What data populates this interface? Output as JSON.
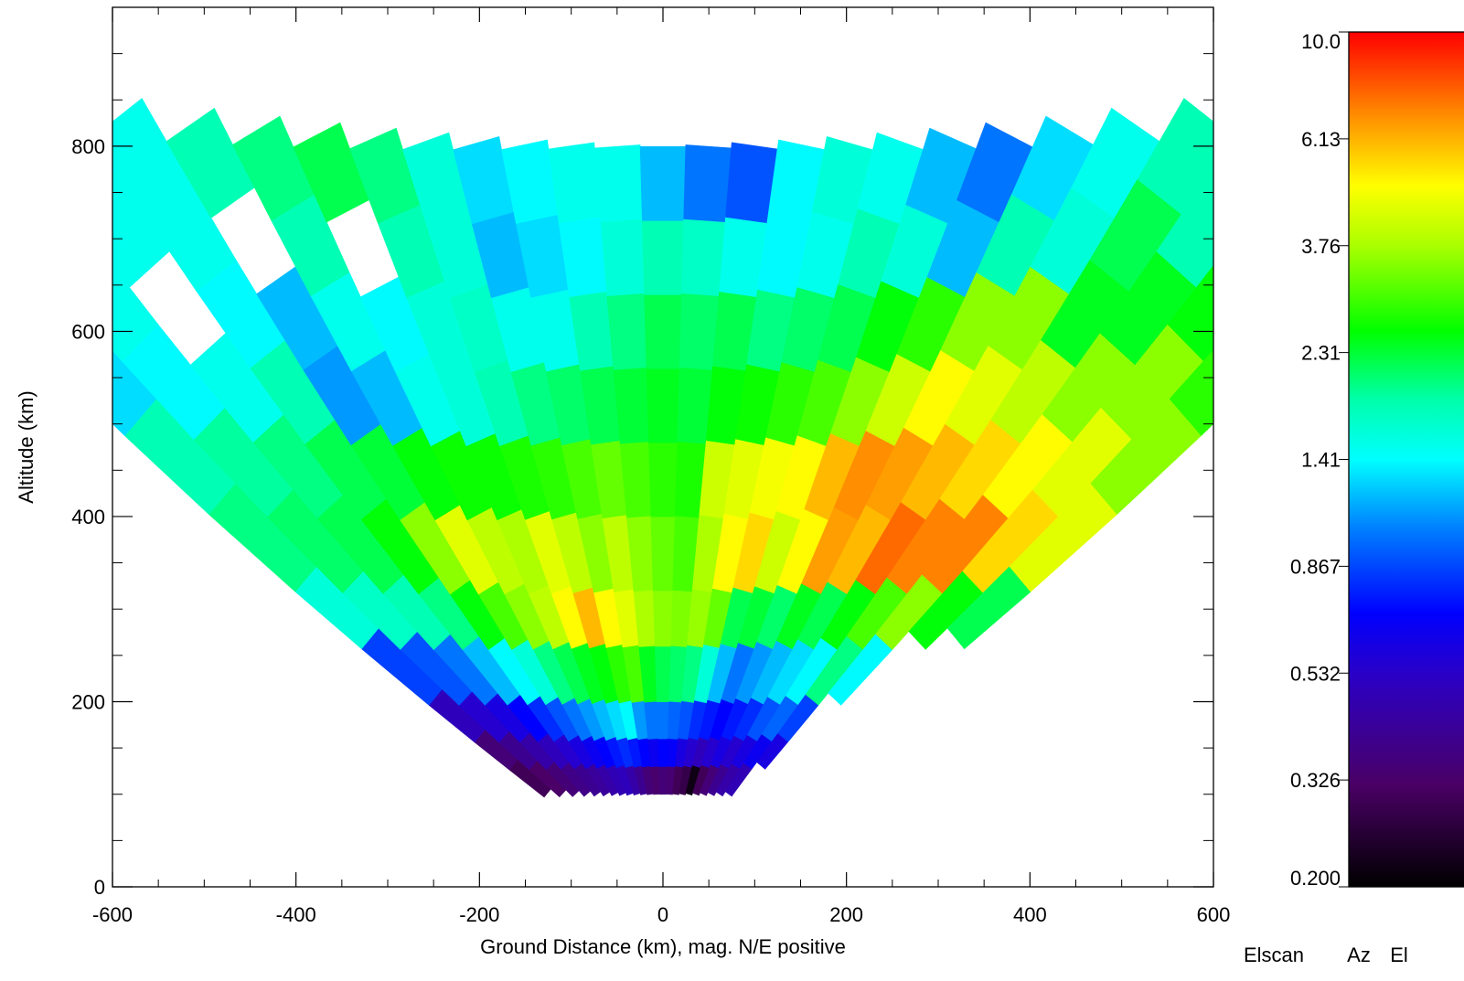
{
  "chart_data": {
    "type": "heatmap",
    "title": "",
    "xlabel": "Ground Distance (km), mag. N/E positive",
    "ylabel": "Altitude (km)",
    "xlim": [
      -600,
      600
    ],
    "ylim": [
      0,
      950
    ],
    "x_ticks": [
      "-600",
      "-400",
      "-200",
      "0",
      "200",
      "400",
      "600"
    ],
    "y_ticks": [
      "0",
      "200",
      "400",
      "600",
      "800"
    ],
    "grid": false,
    "colorbar": {
      "scale": "log",
      "min": 0.2,
      "max": 10.0,
      "tick_labels": [
        "10.0",
        "6.13",
        "3.76",
        "2.31",
        "1.41",
        "0.867",
        "0.532",
        "0.326",
        "0.200"
      ]
    },
    "footer_labels": [
      "Elscan",
      "Az",
      "El"
    ],
    "scan": {
      "beam_angles_deg": [
        -52,
        -48,
        -44,
        -40,
        -36,
        -32,
        -28,
        -24,
        -20,
        -16,
        -12,
        -8,
        -4,
        0,
        4,
        8,
        12,
        16,
        20,
        24,
        28,
        32,
        36,
        40,
        44,
        48,
        52
      ],
      "range_gate_edges_km": [
        100,
        130,
        160,
        200,
        260,
        320,
        400,
        480,
        560,
        640,
        720,
        800
      ],
      "values": [
        [
          0.3,
          0.35,
          0.5,
          0.85,
          1.6,
          2.0,
          1.8,
          1.3,
          1.4,
          1.0,
          0.9
        ],
        [
          0.32,
          0.4,
          0.55,
          0.9,
          1.7,
          2.1,
          1.9,
          1.4,
          1.5,
          1.0,
          0.9
        ],
        [
          0.35,
          0.45,
          0.6,
          1.0,
          1.8,
          2.2,
          2.0,
          1.5,
          null,
          1.5,
          1.4
        ],
        [
          0.38,
          0.5,
          0.7,
          1.2,
          2.0,
          2.5,
          2.2,
          1.8,
          1.4,
          1.5,
          1.5
        ],
        [
          0.4,
          0.55,
          0.8,
          1.4,
          2.5,
          3.5,
          2.3,
          1.1,
          1.2,
          null,
          1.8
        ],
        [
          0.42,
          0.6,
          0.9,
          1.6,
          3.0,
          4.5,
          2.5,
          1.2,
          1.5,
          1.8,
          2.0
        ],
        [
          0.45,
          0.65,
          1.0,
          2.0,
          3.5,
          4.0,
          2.6,
          1.5,
          1.4,
          null,
          2.2
        ],
        [
          0.48,
          0.7,
          1.1,
          2.2,
          4.0,
          3.8,
          2.6,
          1.6,
          1.6,
          1.8,
          2.0
        ],
        [
          0.5,
          0.75,
          1.2,
          2.4,
          5.0,
          4.5,
          2.7,
          1.8,
          1.7,
          1.6,
          1.6
        ],
        [
          0.45,
          0.8,
          1.3,
          2.5,
          6.0,
          4.0,
          2.8,
          2.0,
          1.5,
          1.2,
          1.3
        ],
        [
          0.4,
          0.75,
          1.4,
          2.8,
          5.0,
          3.5,
          3.0,
          2.1,
          1.5,
          1.3,
          1.4
        ],
        [
          0.35,
          0.7,
          1.1,
          3.0,
          4.5,
          4.0,
          3.2,
          2.2,
          1.8,
          1.4,
          1.5
        ],
        [
          0.33,
          0.65,
          1.0,
          2.4,
          3.8,
          3.5,
          3.0,
          2.3,
          2.0,
          1.6,
          1.5
        ],
        [
          0.35,
          0.7,
          1.0,
          2.2,
          3.5,
          3.2,
          2.8,
          2.4,
          2.2,
          1.8,
          1.2
        ],
        [
          0.34,
          0.68,
          0.95,
          2.1,
          3.4,
          3.0,
          2.7,
          2.3,
          2.1,
          1.7,
          1.0
        ],
        [
          0.3,
          0.6,
          0.9,
          2.0,
          3.6,
          3.8,
          4.2,
          2.5,
          2.2,
          1.5,
          0.9
        ],
        [
          0.28,
          0.55,
          0.8,
          1.6,
          3.2,
          5.0,
          4.5,
          2.6,
          2.0,
          1.4,
          1.4
        ],
        [
          0.22,
          0.5,
          0.75,
          1.2,
          2.2,
          5.5,
          4.8,
          2.8,
          2.1,
          1.5,
          1.6
        ],
        [
          0.3,
          0.55,
          0.7,
          1.0,
          2.3,
          4.2,
          5.0,
          3.0,
          2.2,
          1.8,
          1.5
        ],
        [
          0.35,
          0.6,
          0.75,
          1.1,
          2.1,
          5.0,
          6.0,
          3.5,
          2.5,
          1.6,
          1.2
        ],
        [
          0.4,
          0.55,
          0.8,
          1.2,
          2.4,
          6.5,
          6.8,
          4.2,
          2.8,
          1.2,
          1.0
        ],
        [
          0.45,
          0.6,
          0.9,
          1.3,
          2.2,
          6.0,
          6.5,
          5.0,
          3.5,
          1.8,
          1.3
        ],
        [
          0.48,
          0.65,
          0.95,
          1.4,
          2.5,
          7.5,
          6.0,
          4.5,
          3.5,
          1.6,
          1.5
        ],
        [
          null,
          0.6,
          0.85,
          2.0,
          3.0,
          7.0,
          5.5,
          4.0,
          2.4,
          2.2,
          1.8
        ],
        [
          null,
          null,
          null,
          1.4,
          3.5,
          7.0,
          5.0,
          3.5,
          2.4,
          1.8,
          1.7
        ],
        [
          null,
          null,
          null,
          null,
          2.5,
          5.5,
          4.5,
          3.5,
          2.5,
          2.0,
          1.8
        ],
        [
          null,
          null,
          null,
          null,
          2.2,
          4.5,
          3.5,
          2.8,
          2.2,
          1.8,
          1.6
        ]
      ]
    }
  }
}
